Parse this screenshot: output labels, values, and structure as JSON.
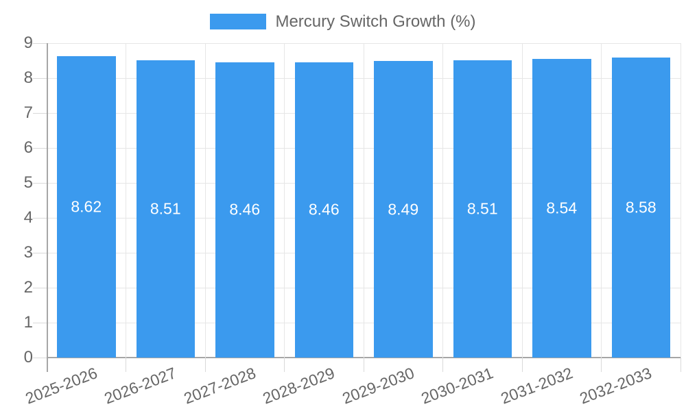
{
  "legend": {
    "label": "Mercury Switch Growth (%)"
  },
  "chart_data": {
    "type": "bar",
    "title": "",
    "series_name": "Mercury Switch Growth (%)",
    "categories": [
      "2025-2026",
      "2026-2027",
      "2027-2028",
      "2028-2029",
      "2029-2030",
      "2030-2031",
      "2031-2032",
      "2032-2033"
    ],
    "values": [
      8.62,
      8.51,
      8.46,
      8.46,
      8.49,
      8.51,
      8.54,
      8.58
    ],
    "value_labels": [
      "8.62",
      "8.51",
      "8.46",
      "8.46",
      "8.49",
      "8.51",
      "8.54",
      "8.58"
    ],
    "xlabel": "",
    "ylabel": "",
    "ylim": [
      0,
      9
    ],
    "ytick_step": 1,
    "yticks": [
      "0",
      "1",
      "2",
      "3",
      "4",
      "5",
      "6",
      "7",
      "8",
      "9"
    ],
    "grid": true,
    "legend_position": "top-center",
    "x_label_rotation_deg": -21,
    "colors": {
      "bar": "#3b9aee",
      "bar_value_text": "#ffffff",
      "axis_text": "#666666",
      "grid_line": "#e6e6e6",
      "tick_line": "#d9d9d9",
      "axis_line": "#a6a6a6",
      "background": "#ffffff"
    }
  }
}
